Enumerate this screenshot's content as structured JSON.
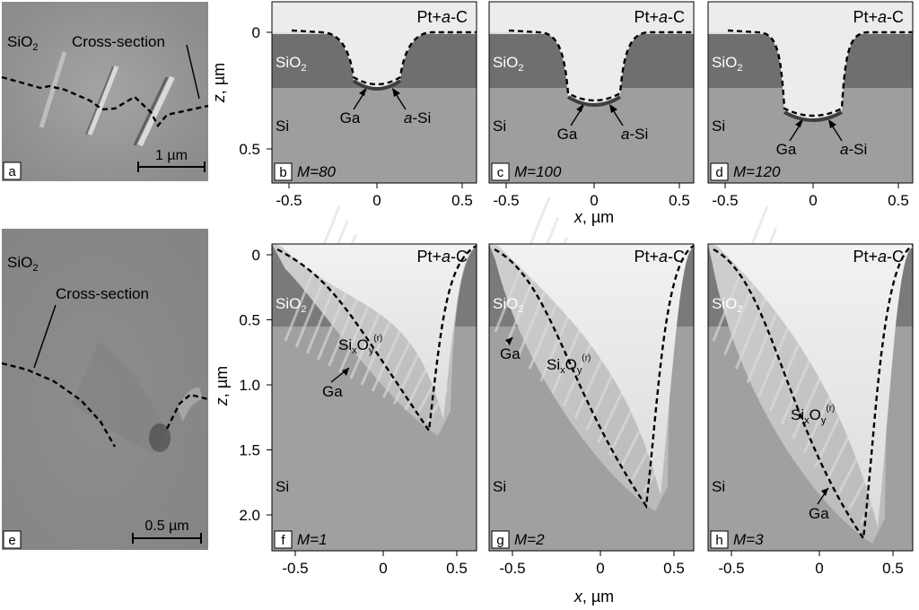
{
  "top_row": {
    "panels": [
      {
        "letter": "b",
        "m_label": "M=80",
        "ga": "Ga",
        "asi_a": "a",
        "asi_rest": "-Si"
      },
      {
        "letter": "c",
        "m_label": "M=100",
        "ga": "Ga",
        "asi_a": "a",
        "asi_rest": "-Si"
      },
      {
        "letter": "d",
        "m_label": "M=120",
        "ga": "Ga",
        "asi_a": "a",
        "asi_rest": "-Si"
      }
    ],
    "pt_prefix": "Pt+",
    "pt_a": "a",
    "pt_suffix": "-C",
    "y_ticks": [
      "0",
      "0.5"
    ],
    "x_ticks": [
      "-0.5",
      "0",
      "0.5"
    ]
  },
  "bottom_row": {
    "panels": [
      {
        "letter": "f",
        "m_label": "M=1",
        "ga": "Ga",
        "six": "Si",
        "sub_x": "x",
        "o": "O",
        "sub_y": "y",
        "sup": "(r)"
      },
      {
        "letter": "g",
        "m_label": "M=2",
        "ga": "Ga",
        "six": "Si",
        "sub_x": "x",
        "o": "O",
        "sub_y": "y",
        "sup": "(r)"
      },
      {
        "letter": "h",
        "m_label": "M=3",
        "ga": "Ga",
        "six": "Si",
        "sub_x": "x",
        "o": "O",
        "sub_y": "y",
        "sup": "(r)"
      }
    ],
    "y_ticks": [
      "0",
      "0.5",
      "1.0",
      "1.5",
      "2.0"
    ],
    "x_ticks": [
      "-0.5",
      "0",
      "0.5"
    ]
  },
  "common": {
    "sio2_base": "SiO",
    "sio2_sub": "2",
    "si": "Si",
    "axis_x_var": "x",
    "axis_x_unit": ", µm",
    "axis_z_var": "z",
    "axis_z_unit": ", µm"
  },
  "panel_a": {
    "letter": "a",
    "cross_section": "Cross-section",
    "scale": "1 µm"
  },
  "panel_e": {
    "letter": "e",
    "cross_section": "Cross-section",
    "scale": "0.5 µm"
  }
}
